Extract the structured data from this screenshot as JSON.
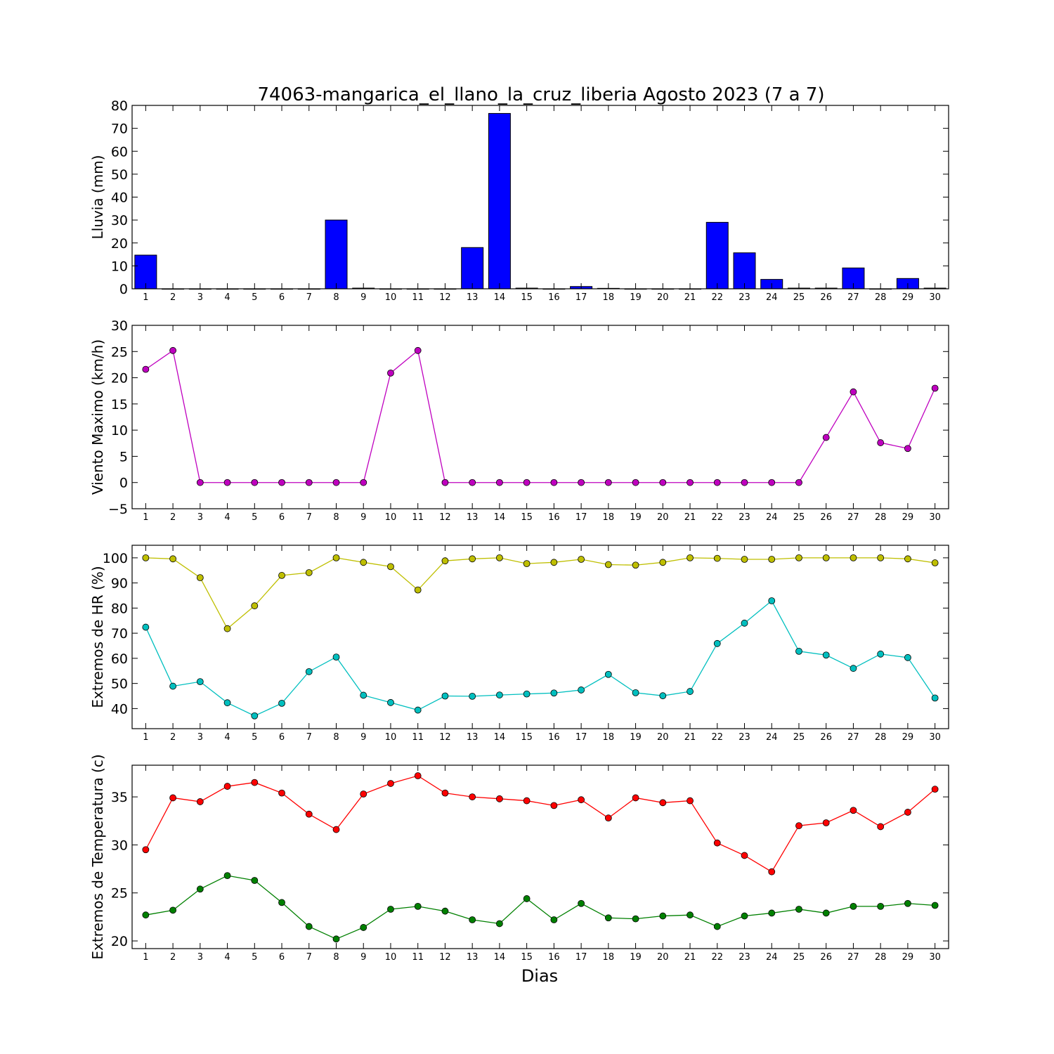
{
  "title": "74063-mangarica_el_llano_la_cruz_liberia Agosto 2023  (7 a 7)",
  "xlabel": "Dias",
  "days": [
    1,
    2,
    3,
    4,
    5,
    6,
    7,
    8,
    9,
    10,
    11,
    12,
    13,
    14,
    15,
    16,
    17,
    18,
    19,
    20,
    21,
    22,
    23,
    24,
    25,
    26,
    27,
    28,
    29,
    30
  ],
  "chart_data": [
    {
      "type": "bar",
      "ylabel": "Lluvia (mm)",
      "ylim": [
        0,
        80
      ],
      "yticks": [
        0,
        10,
        20,
        30,
        40,
        50,
        60,
        70,
        80
      ],
      "categories": [
        1,
        2,
        3,
        4,
        5,
        6,
        7,
        8,
        9,
        10,
        11,
        12,
        13,
        14,
        15,
        16,
        17,
        18,
        19,
        20,
        21,
        22,
        23,
        24,
        25,
        26,
        27,
        28,
        29,
        30
      ],
      "values": [
        14.7,
        0,
        0,
        0,
        0,
        0,
        0,
        30.0,
        0.3,
        0,
        0,
        0,
        18.0,
        76.5,
        0.3,
        0,
        1.0,
        0.2,
        0,
        0,
        0,
        29.0,
        15.7,
        4.1,
        0.3,
        0.3,
        9.1,
        0,
        4.5,
        0.3
      ],
      "color": "#0000ff"
    },
    {
      "type": "line",
      "ylabel": "Viento Maximo (km/h)",
      "ylim": [
        -5,
        30
      ],
      "yticks": [
        -5,
        0,
        5,
        10,
        15,
        20,
        25,
        30
      ],
      "x": [
        1,
        2,
        3,
        4,
        5,
        6,
        7,
        8,
        9,
        10,
        11,
        12,
        13,
        14,
        15,
        16,
        17,
        18,
        19,
        20,
        21,
        22,
        23,
        24,
        25,
        26,
        27,
        28,
        29,
        30
      ],
      "series": [
        {
          "values": [
            21.6,
            25.2,
            0,
            0,
            0,
            0,
            0,
            0,
            0,
            20.9,
            25.2,
            0,
            0,
            0,
            0,
            0,
            0,
            0,
            0,
            0,
            0,
            0,
            0,
            0,
            0,
            8.6,
            17.3,
            7.6,
            6.5,
            18.0
          ],
          "color": "#bf00bf"
        }
      ]
    },
    {
      "type": "line",
      "ylabel": "Extremos de HR (%)",
      "ylim": [
        32,
        105
      ],
      "yticks": [
        40,
        50,
        60,
        70,
        80,
        90,
        100
      ],
      "x": [
        1,
        2,
        3,
        4,
        5,
        6,
        7,
        8,
        9,
        10,
        11,
        12,
        13,
        14,
        15,
        16,
        17,
        18,
        19,
        20,
        21,
        22,
        23,
        24,
        25,
        26,
        27,
        28,
        29,
        30
      ],
      "series": [
        {
          "values": [
            100,
            99.6,
            92.1,
            71.8,
            80.9,
            93.0,
            94.1,
            100,
            98.2,
            96.5,
            87.2,
            98.8,
            99.6,
            100,
            97.7,
            98.2,
            99.4,
            97.3,
            97.1,
            98.2,
            100,
            99.8,
            99.4,
            99.4,
            100,
            100,
            100,
            100,
            99.6,
            98.0
          ],
          "color": "#bfbf00"
        },
        {
          "values": [
            72.4,
            48.9,
            50.7,
            42.3,
            37.1,
            42.1,
            54.7,
            60.5,
            45.3,
            42.4,
            39.4,
            45.0,
            44.9,
            45.4,
            45.8,
            46.2,
            47.4,
            53.6,
            46.3,
            45.1,
            46.8,
            65.9,
            74.0,
            82.9,
            62.8,
            61.3,
            56.0,
            61.7,
            60.3,
            44.2
          ],
          "color": "#00bfbf"
        }
      ]
    },
    {
      "type": "line",
      "ylabel": "Extremos de Temperatura (c)",
      "ylim": [
        19.2,
        38.3
      ],
      "yticks": [
        20,
        25,
        30,
        35
      ],
      "x": [
        1,
        2,
        3,
        4,
        5,
        6,
        7,
        8,
        9,
        10,
        11,
        12,
        13,
        14,
        15,
        16,
        17,
        18,
        19,
        20,
        21,
        22,
        23,
        24,
        25,
        26,
        27,
        28,
        29,
        30
      ],
      "series": [
        {
          "values": [
            29.5,
            34.9,
            34.5,
            36.1,
            36.5,
            35.4,
            33.2,
            31.6,
            35.3,
            36.4,
            37.2,
            35.4,
            35.0,
            34.8,
            34.6,
            34.1,
            34.7,
            32.8,
            34.9,
            34.4,
            34.6,
            30.2,
            28.9,
            27.2,
            32.0,
            32.3,
            33.6,
            31.9,
            33.4,
            35.8
          ],
          "color": "#ff0000"
        },
        {
          "values": [
            22.7,
            23.2,
            25.4,
            26.8,
            26.3,
            24.0,
            21.5,
            20.2,
            21.4,
            23.3,
            23.6,
            23.1,
            22.2,
            21.8,
            24.4,
            22.2,
            23.9,
            22.4,
            22.3,
            22.6,
            22.7,
            21.5,
            22.6,
            22.9,
            23.3,
            22.9,
            23.6,
            23.6,
            23.9,
            23.7
          ],
          "color": "#008000"
        }
      ]
    }
  ]
}
